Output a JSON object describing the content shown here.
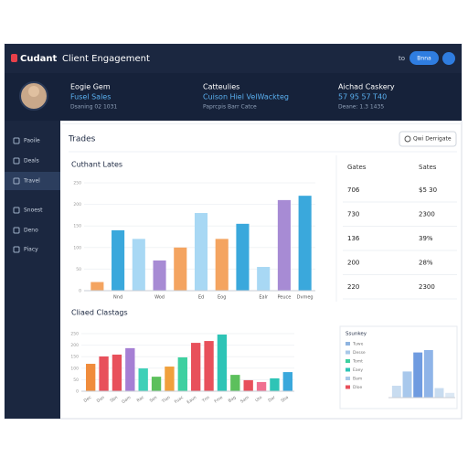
{
  "topbar": {
    "brand": "Cudant",
    "title": "Client Engagement",
    "link": "to",
    "button": "Bnna"
  },
  "profile": {
    "columns": [
      {
        "title": "Eogie Gem",
        "value": "Fusel Sales",
        "sub": "Dsaning 02 1031"
      },
      {
        "title": "Catteulies",
        "value": "Cuison Hiel VelWackteg",
        "sub": "Paprcpis Barr Catce"
      },
      {
        "title": "Aichad Caskery",
        "value": "57 95 57 T40",
        "sub": "Deane: 1.3 1435"
      }
    ]
  },
  "sidebar": {
    "items": [
      "Paoile",
      "Deals",
      "Travel",
      "Snoest",
      "Deno",
      "Piacy"
    ],
    "active": 2
  },
  "section": {
    "title": "Trades",
    "search": "Qwi Derrigate"
  },
  "table": {
    "header": [
      "Gates",
      "Sates"
    ],
    "rows": [
      [
        "706",
        "$5 30"
      ],
      [
        "730",
        "2300"
      ],
      [
        "136",
        "39%"
      ],
      [
        "200",
        "28%"
      ],
      [
        "220",
        "2300"
      ]
    ]
  },
  "chart_data": [
    {
      "type": "bar",
      "title": "Cuthant Lates",
      "categories": [
        null,
        "Nnd",
        null,
        "Wod",
        null,
        "Ed",
        "Eog",
        null,
        "Ealr",
        "Peuce",
        "Dvmeg"
      ],
      "values": [
        20,
        140,
        120,
        70,
        100,
        180,
        120,
        155,
        55,
        210,
        220
      ],
      "colors": [
        "#f4a460",
        "#3aa8dc",
        "#a8d8f4",
        "#a78bd4",
        "#f4a460",
        "#a8d8f4",
        "#f4a460",
        "#3aa8dc",
        "#a8d8f4",
        "#a78bd4",
        "#3aa8dc"
      ],
      "ylim": [
        0,
        250
      ],
      "yticks": [
        0,
        50,
        100,
        150,
        200,
        250
      ]
    },
    {
      "type": "bar",
      "title": "Cliaed Clastags",
      "categories": [
        "Dec",
        "Dan",
        "Sbn",
        "Gam",
        "Raz",
        "Sen",
        "Tlan",
        "Fuac",
        "Eaun",
        "Tnn",
        "Fme",
        "Bag",
        "Sam",
        "Uto",
        "Dar",
        "Sha"
      ],
      "values": [
        119,
        151,
        159,
        187,
        99,
        63,
        107,
        147,
        210,
        218,
        246,
        71,
        48,
        40,
        56,
        83
      ],
      "colors": [
        "#f08c3c",
        "#e8505b",
        "#e8505b",
        "#a67fd4",
        "#3ed0b8",
        "#5cc05c",
        "#f0a03c",
        "#3ed0a0",
        "#e8505b",
        "#e8505b",
        "#2ec4b6",
        "#5cc05c",
        "#e8505b",
        "#f07090",
        "#2ec4b6",
        "#3aa8dc"
      ],
      "ylim": [
        0,
        250
      ],
      "yticks": [
        0,
        50,
        100,
        150,
        200,
        250
      ]
    },
    {
      "type": "bar",
      "title": "Ssunkey",
      "legend": [
        {
          "name": "Tuwe",
          "color": "#8fb4e0"
        },
        {
          "name": "Desse",
          "color": "#a8c8e8"
        },
        {
          "name": "Tomt",
          "color": "#3ed0a0"
        },
        {
          "name": "Eaey",
          "color": "#2ec4b6"
        },
        {
          "name": "Bam",
          "color": "#a8c8e8"
        },
        {
          "name": "Dloe",
          "color": "#e8505b"
        }
      ],
      "values": [
        25,
        55,
        95,
        100,
        20,
        10
      ],
      "colors": [
        "#c8dcf0",
        "#a8c8ec",
        "#6f9be0",
        "#8fb4e8",
        "#c8dcf0",
        "#dce8f4"
      ],
      "ylim": [
        0,
        100
      ]
    }
  ]
}
